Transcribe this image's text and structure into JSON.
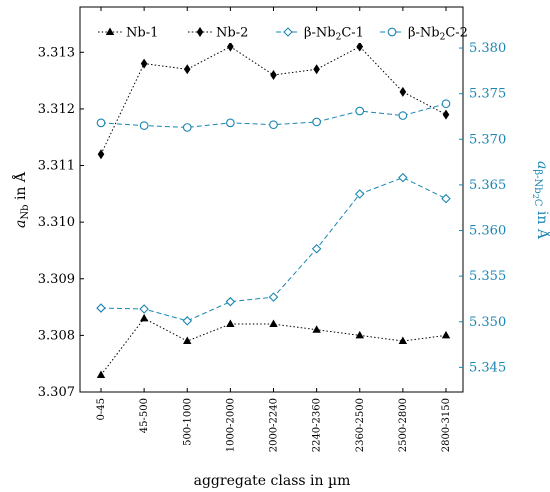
{
  "chart_data": {
    "type": "line",
    "xlabel": "aggregate class in µm",
    "ylabel_left": {
      "main": "a",
      "sub": "Nb",
      "rest": " in Å"
    },
    "ylabel_right": {
      "main": "a",
      "sub": "β-Nb",
      "sub2": "2",
      "sub3": "C",
      "rest": " in Å"
    },
    "categories": [
      "0-45",
      "45-500",
      "500-1000",
      "1000-2000",
      "2000-2240",
      "2240-2360",
      "2360-2500",
      "2500-2800",
      "2800-3150"
    ],
    "y_left": {
      "lim": [
        3.307,
        3.3138
      ],
      "ticks": [
        "3.307",
        "3.308",
        "3.309",
        "3.310",
        "3.311",
        "3.312",
        "3.313"
      ]
    },
    "y_right": {
      "lim": [
        5.3423,
        5.3845
      ],
      "ticks": [
        "5.345",
        "5.350",
        "5.355",
        "5.360",
        "5.365",
        "5.370",
        "5.375",
        "5.380"
      ]
    },
    "legend_position": "top",
    "series": [
      {
        "name": "Nb-1",
        "axis": "left",
        "color": "#000000",
        "dash": "dotted",
        "marker": "triangle",
        "values": [
          3.3073,
          3.3083,
          3.3079,
          3.3082,
          3.3082,
          3.3081,
          3.308,
          3.3079,
          3.308
        ]
      },
      {
        "name": "Nb-2",
        "axis": "left",
        "color": "#000000",
        "dash": "dotted",
        "marker": "diamond",
        "values": [
          3.3112,
          3.3128,
          3.3127,
          3.3131,
          3.3126,
          3.3127,
          3.3131,
          3.3123,
          3.3119
        ]
      },
      {
        "name": "β-Nb",
        "name_sub": "2",
        "name_rest": "C-1",
        "axis": "right",
        "color": "#1a86b3",
        "dash": "dashed",
        "marker": "diamond-open",
        "values": [
          5.3515,
          5.3514,
          5.3501,
          5.3522,
          5.3527,
          5.358,
          5.364,
          5.3658,
          5.3635
        ]
      },
      {
        "name": "β-Nb",
        "name_sub": "2",
        "name_rest": "C-2",
        "axis": "right",
        "color": "#1a86b3",
        "dash": "dashed",
        "marker": "circle-open",
        "values": [
          5.3718,
          5.3715,
          5.3713,
          5.3718,
          5.3716,
          5.3719,
          5.3731,
          5.3726,
          5.3739
        ]
      }
    ]
  }
}
